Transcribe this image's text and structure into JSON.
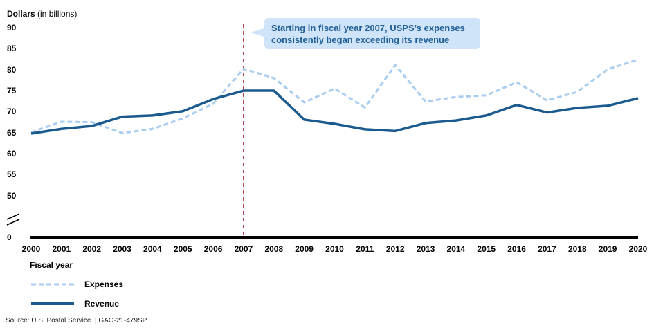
{
  "chart_data": {
    "type": "line",
    "title": "",
    "ylabel_bold": "Dollars",
    "ylabel_rest": " (in billions)",
    "xlabel": "Fiscal year",
    "ylim": [
      50,
      90
    ],
    "yticks": [
      "90",
      "85",
      "80",
      "75",
      "70",
      "65",
      "60",
      "55",
      "50"
    ],
    "ytick_values": [
      90,
      85,
      80,
      75,
      70,
      65,
      60,
      55,
      50
    ],
    "zero_tick": "0",
    "axis_break": true,
    "categories": [
      "2000",
      "2001",
      "2002",
      "2003",
      "2004",
      "2005",
      "2006",
      "2007",
      "2008",
      "2009",
      "2010",
      "2011",
      "2012",
      "2013",
      "2014",
      "2015",
      "2016",
      "2017",
      "2018",
      "2019",
      "2020"
    ],
    "series": [
      {
        "name": "Expenses",
        "style": "dashed",
        "color": "#a9cdf0",
        "values": [
          65.1,
          67.6,
          67.5,
          64.9,
          65.9,
          68.4,
          71.9,
          80.2,
          78.0,
          72.2,
          75.5,
          71.0,
          81.1,
          72.4,
          73.5,
          73.9,
          77.0,
          72.7,
          74.7,
          80.1,
          82.4
        ]
      },
      {
        "name": "Revenue",
        "style": "solid",
        "color": "#1a5a8e",
        "values": [
          64.8,
          65.9,
          66.6,
          68.8,
          69.1,
          70.1,
          73.0,
          75.0,
          75.0,
          68.1,
          67.1,
          65.8,
          65.4,
          67.3,
          67.9,
          69.1,
          71.6,
          69.8,
          70.9,
          71.4,
          73.2
        ]
      }
    ],
    "marker_line": {
      "x": "2007",
      "color": "#a3142a",
      "style": "dashed"
    },
    "annotation": {
      "text_line1": "Starting in fiscal year 2007, USPS’s expenses",
      "text_line2": "consistently began exceeding its revenue",
      "background": "#cfe4f8",
      "color": "#1f5e96"
    },
    "legend": {
      "position": "bottom-left",
      "items": [
        "Expenses",
        "Revenue"
      ]
    },
    "grid": false
  },
  "source": "Source: U.S. Postal Service.  |  GAO-21-479SP"
}
